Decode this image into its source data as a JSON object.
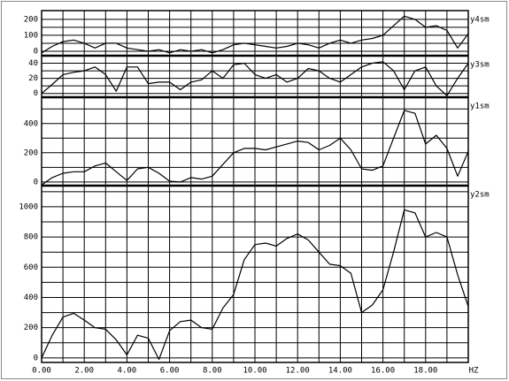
{
  "chart_data": [
    {
      "type": "line",
      "xlim": [
        0,
        20
      ],
      "ylim": [
        -28,
        255
      ],
      "yticks": [
        0,
        100,
        200
      ],
      "yminor": [
        50,
        150
      ],
      "x": [
        0,
        0.5,
        1,
        1.5,
        2,
        2.5,
        3,
        3.5,
        4,
        4.5,
        5,
        5.5,
        6,
        6.5,
        7,
        7.5,
        8,
        8.5,
        9,
        9.5,
        10,
        10.5,
        11,
        11.5,
        12,
        12.5,
        13,
        13.5,
        14,
        14.5,
        15,
        15.5,
        16,
        16.5,
        17,
        17.5,
        18,
        18.5,
        19,
        19.5,
        20
      ],
      "series": [
        {
          "name": "y4sm",
          "color": "#000000",
          "values": [
            -10,
            30,
            60,
            70,
            50,
            20,
            50,
            50,
            20,
            10,
            0,
            10,
            -10,
            10,
            0,
            10,
            -10,
            10,
            40,
            50,
            40,
            30,
            20,
            30,
            50,
            40,
            20,
            50,
            70,
            50,
            70,
            80,
            100,
            160,
            220,
            200,
            150,
            160,
            130,
            20,
            110
          ]
        }
      ]
    },
    {
      "type": "line",
      "xlim": [
        0,
        20
      ],
      "ylim": [
        -5,
        50
      ],
      "yticks": [
        0,
        20,
        40
      ],
      "yminor": [
        10,
        30
      ],
      "x": [
        0,
        0.5,
        1,
        1.5,
        2,
        2.5,
        3,
        3.5,
        4,
        4.5,
        5,
        5.5,
        6,
        6.5,
        7,
        7.5,
        8,
        8.5,
        9,
        9.5,
        10,
        10.5,
        11,
        11.5,
        12,
        12.5,
        13,
        13.5,
        14,
        14.5,
        15,
        15.5,
        16,
        16.5,
        17,
        17.5,
        18,
        18.5,
        19,
        19.5,
        20
      ],
      "series": [
        {
          "name": "y3sm",
          "color": "#000000",
          "values": [
            0,
            12,
            25,
            28,
            30,
            35,
            25,
            3,
            35,
            35,
            13,
            15,
            15,
            5,
            15,
            18,
            30,
            20,
            38,
            40,
            25,
            20,
            25,
            15,
            20,
            33,
            30,
            20,
            15,
            25,
            35,
            40,
            42,
            30,
            5,
            30,
            35,
            10,
            -3,
            20,
            40
          ]
        }
      ]
    },
    {
      "type": "line",
      "xlim": [
        0,
        20
      ],
      "ylim": [
        -25,
        580
      ],
      "yticks": [
        0,
        200,
        400
      ],
      "yminor": [
        100,
        300,
        500
      ],
      "x": [
        0,
        0.5,
        1,
        1.5,
        2,
        2.5,
        3,
        3.5,
        4,
        4.5,
        5,
        5.5,
        6,
        6.5,
        7,
        7.5,
        8,
        8.5,
        9,
        9.5,
        10,
        10.5,
        11,
        11.5,
        12,
        12.5,
        13,
        13.5,
        14,
        14.5,
        15,
        15.5,
        16,
        16.5,
        17,
        17.5,
        18,
        18.5,
        19,
        19.5,
        20
      ],
      "series": [
        {
          "name": "y1sm",
          "color": "#000000",
          "values": [
            -20,
            30,
            60,
            70,
            70,
            110,
            130,
            70,
            10,
            90,
            100,
            60,
            5,
            0,
            30,
            20,
            40,
            120,
            200,
            230,
            230,
            220,
            240,
            260,
            280,
            270,
            220,
            250,
            300,
            220,
            90,
            80,
            110,
            300,
            490,
            470,
            260,
            320,
            230,
            40,
            210
          ]
        }
      ]
    },
    {
      "type": "line",
      "xlim": [
        0,
        20
      ],
      "ylim": [
        -30,
        1140
      ],
      "yticks": [
        0,
        200,
        400,
        600,
        800,
        1000
      ],
      "yminor": [
        100,
        300,
        500,
        700,
        900,
        1100
      ],
      "xticks": [
        {
          "value": 0,
          "label": "0.00"
        },
        {
          "value": 2,
          "label": "2.00"
        },
        {
          "value": 4,
          "label": "4.00"
        },
        {
          "value": 6,
          "label": "6.00"
        },
        {
          "value": 8,
          "label": "8.00"
        },
        {
          "value": 10,
          "label": "10.00"
        },
        {
          "value": 12,
          "label": "12.00"
        },
        {
          "value": 14,
          "label": "14.00"
        },
        {
          "value": 16,
          "label": "16.00"
        },
        {
          "value": 18,
          "label": "18.00"
        }
      ],
      "xminor": [
        1,
        3,
        5,
        7,
        9,
        11,
        13,
        15,
        17,
        19
      ],
      "xlabel": "HZ",
      "x": [
        0,
        0.5,
        1,
        1.5,
        2,
        2.5,
        3,
        3.5,
        4,
        4.5,
        5,
        5.5,
        6,
        6.5,
        7,
        7.5,
        8,
        8.5,
        9,
        9.5,
        10,
        10.5,
        11,
        11.5,
        12,
        12.5,
        13,
        13.5,
        14,
        14.5,
        15,
        15.5,
        16,
        16.5,
        17,
        17.5,
        18,
        18.5,
        19,
        19.5,
        20
      ],
      "series": [
        {
          "name": "y2sm",
          "color": "#000000",
          "values": [
            0,
            150,
            270,
            295,
            250,
            200,
            190,
            120,
            20,
            150,
            130,
            -10,
            180,
            240,
            250,
            200,
            190,
            330,
            420,
            650,
            750,
            760,
            740,
            790,
            820,
            780,
            700,
            620,
            610,
            560,
            300,
            350,
            450,
            700,
            980,
            960,
            800,
            830,
            800,
            550,
            340
          ]
        }
      ]
    }
  ]
}
